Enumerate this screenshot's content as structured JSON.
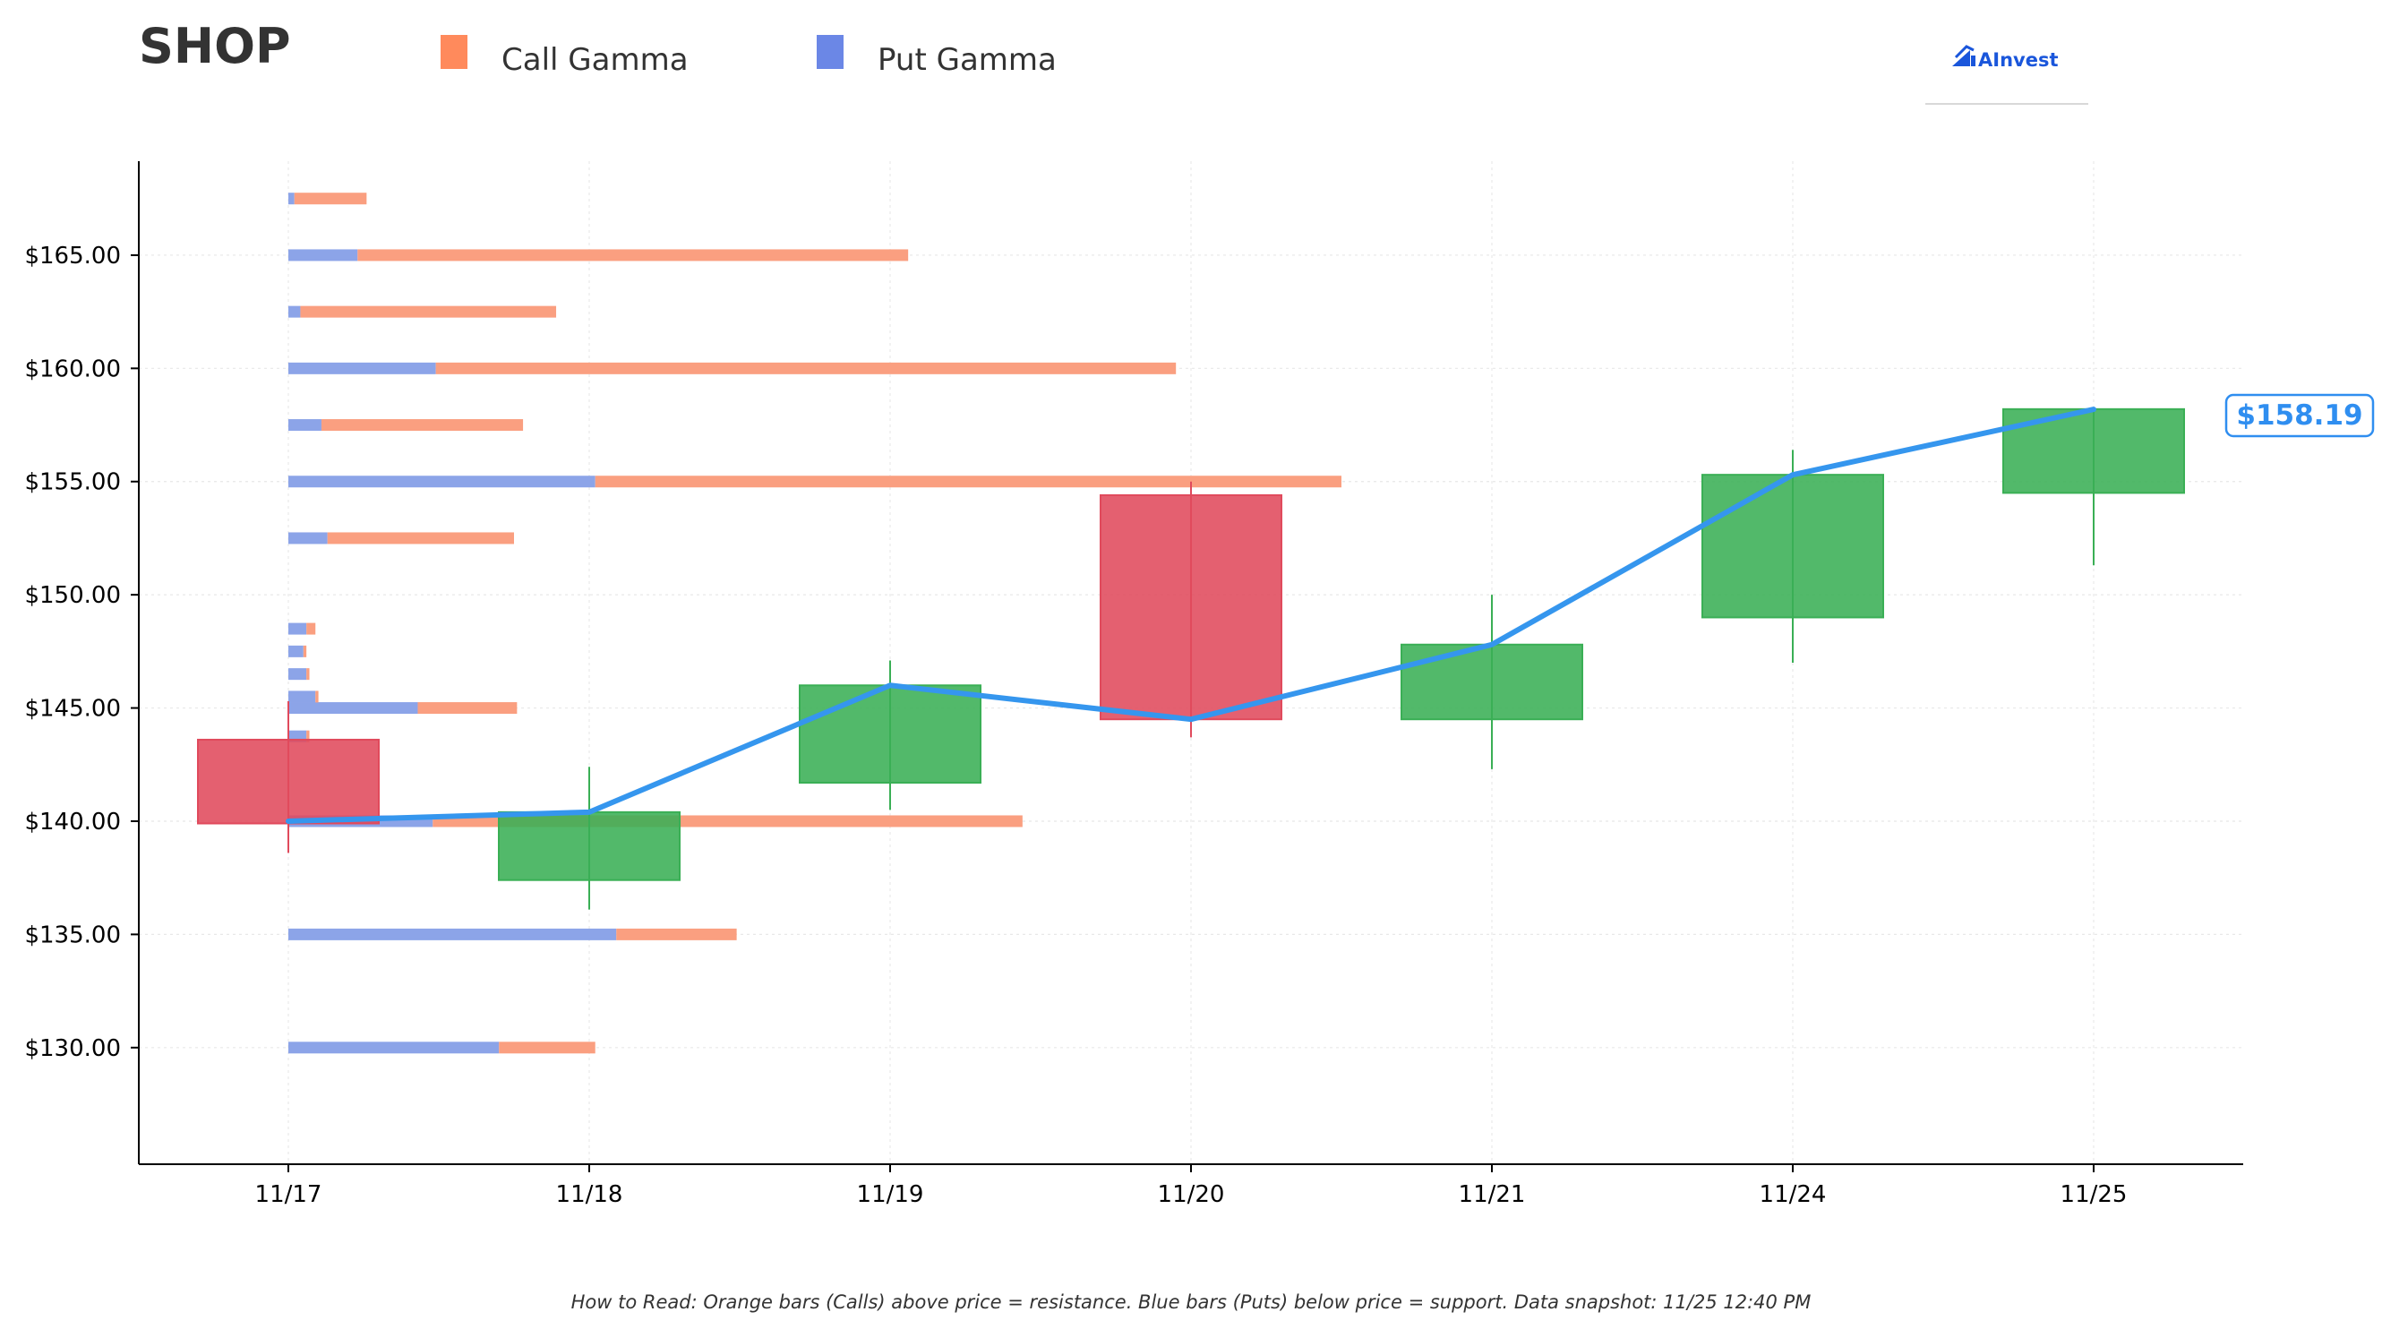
{
  "title": "SHOP",
  "legend": [
    {
      "label": "Call Gamma",
      "color": "#ff8a5c"
    },
    {
      "label": "Put Gamma",
      "color": "#6b87e6"
    }
  ],
  "logo": {
    "text": "AInvest",
    "icon": "ainvest-chart-icon"
  },
  "footnote": "How to Read: Orange bars (Calls) above price = resistance. Blue bars (Puts) below price = support. Data snapshot: 11/25 12:40 PM",
  "current_price_label": "$158.19",
  "colors": {
    "call": "#fa9f80",
    "put": "#8ca4e8",
    "up": "#3aaf55",
    "down": "#e04a5c",
    "line": "#3596ee",
    "axis": "#000000",
    "grid": "#e8e8e8"
  },
  "chart_data": {
    "type": "candlestick",
    "x_categories": [
      "11/17",
      "11/18",
      "11/19",
      "11/20",
      "11/21",
      "11/24",
      "11/25"
    ],
    "ylim": [
      124.85,
      169.15
    ],
    "y_ticks": [
      130,
      135,
      140,
      145,
      150,
      155,
      160,
      165
    ],
    "y_tick_labels": [
      "$130.00",
      "$135.00",
      "$140.00",
      "$145.00",
      "$150.00",
      "$155.00",
      "$160.00",
      "$165.00"
    ],
    "grid": true,
    "candles": [
      {
        "date": "11/17",
        "open": 143.6,
        "high": 145.3,
        "low": 138.6,
        "close": 139.9
      },
      {
        "date": "11/18",
        "open": 137.4,
        "high": 142.4,
        "low": 136.1,
        "close": 140.4
      },
      {
        "date": "11/19",
        "open": 141.7,
        "high": 147.1,
        "low": 140.5,
        "close": 146.0
      },
      {
        "date": "11/20",
        "open": 154.4,
        "high": 155.0,
        "low": 143.7,
        "close": 144.5
      },
      {
        "date": "11/21",
        "open": 144.5,
        "high": 150.0,
        "low": 142.3,
        "close": 147.8
      },
      {
        "date": "11/24",
        "open": 149.0,
        "high": 156.4,
        "low": 147.0,
        "close": 155.3
      },
      {
        "date": "11/25",
        "open": 154.5,
        "high": 158.2,
        "low": 151.3,
        "close": 158.2
      }
    ],
    "price_line": {
      "x": [
        "11/17",
        "11/18",
        "11/19",
        "11/20",
        "11/21",
        "11/24",
        "11/25"
      ],
      "y": [
        140.0,
        140.4,
        146.0,
        144.5,
        147.8,
        155.3,
        158.19
      ]
    },
    "gamma_bars": {
      "unit": "relative gamma, in x-axis category widths",
      "strikes": [
        130,
        135,
        140,
        143.75,
        145,
        145.5,
        146.5,
        147.5,
        148.5,
        152.5,
        155,
        157.5,
        160,
        162.5,
        165,
        167.5
      ],
      "put": [
        0.7,
        1.09,
        0.48,
        0.06,
        0.43,
        0.09,
        0.06,
        0.05,
        0.06,
        0.13,
        1.02,
        0.11,
        0.49,
        0.04,
        0.23,
        0.02
      ],
      "call": [
        0.32,
        0.4,
        1.96,
        0.01,
        0.33,
        0.01,
        0.01,
        0.01,
        0.03,
        0.62,
        2.48,
        0.67,
        2.46,
        0.85,
        1.83,
        0.24
      ]
    }
  }
}
